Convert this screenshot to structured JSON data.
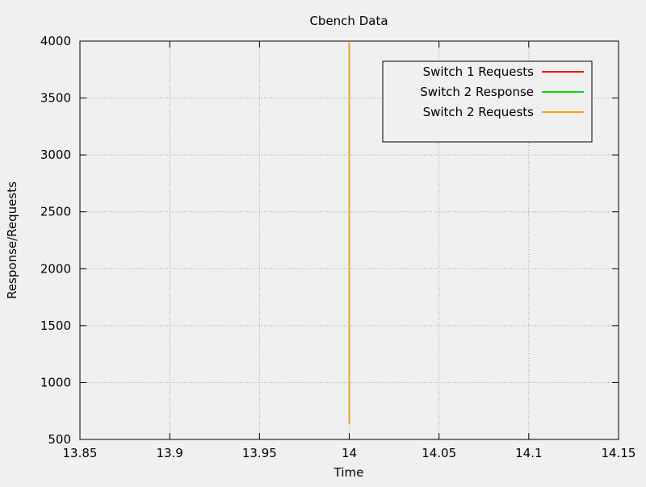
{
  "chart_data": {
    "type": "line",
    "title": "Cbench Data",
    "xlabel": "Time",
    "ylabel": "Response/Requests",
    "xlim": [
      13.85,
      14.15
    ],
    "ylim": [
      500,
      4000
    ],
    "xticks": [
      13.85,
      13.9,
      13.95,
      14,
      14.05,
      14.1,
      14.15
    ],
    "xtick_labels": [
      "13.85",
      "13.9",
      "13.95",
      "14",
      "14.05",
      "14.1",
      "14.15"
    ],
    "yticks": [
      500,
      1000,
      1500,
      2000,
      2500,
      3000,
      3500,
      4000
    ],
    "ytick_labels": [
      "500",
      "1000",
      "1500",
      "2000",
      "2500",
      "3000",
      "3500",
      "4000"
    ],
    "grid": true,
    "legend_position": "top-right",
    "series": [
      {
        "name": "Switch 1 Requests",
        "color": "#ff0000",
        "x": [
          14,
          14
        ],
        "y": [
          4000,
          640
        ]
      },
      {
        "name": "Switch 2 Response",
        "color": "#00dd00",
        "x": [
          14,
          14
        ],
        "y": [
          4000,
          640
        ]
      },
      {
        "name": "Switch 2 Requests",
        "color": "#ffa000",
        "x": [
          14,
          14
        ],
        "y": [
          4000,
          640
        ]
      }
    ]
  }
}
